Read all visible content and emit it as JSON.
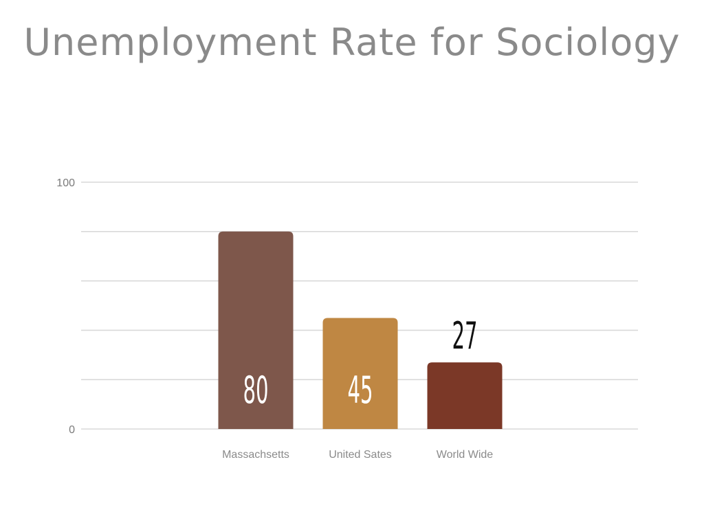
{
  "title": "Unemployment Rate for Sociology",
  "chart_data": {
    "type": "bar",
    "title": "Unemployment Rate for Sociology",
    "categories": [
      "Massachsetts",
      "United Sates",
      "World Wide"
    ],
    "values": [
      80,
      45,
      27
    ],
    "value_labels": [
      "80",
      "45",
      "27"
    ],
    "colors": [
      "#7e574b",
      "#bf8743",
      "#7b3827"
    ],
    "ylim": [
      0,
      100
    ],
    "y_ticks": [
      "0",
      "100"
    ],
    "gridlines": [
      0,
      20,
      40,
      60,
      80,
      100
    ],
    "grid": true,
    "legend": "none",
    "xlabel": "",
    "ylabel": ""
  }
}
